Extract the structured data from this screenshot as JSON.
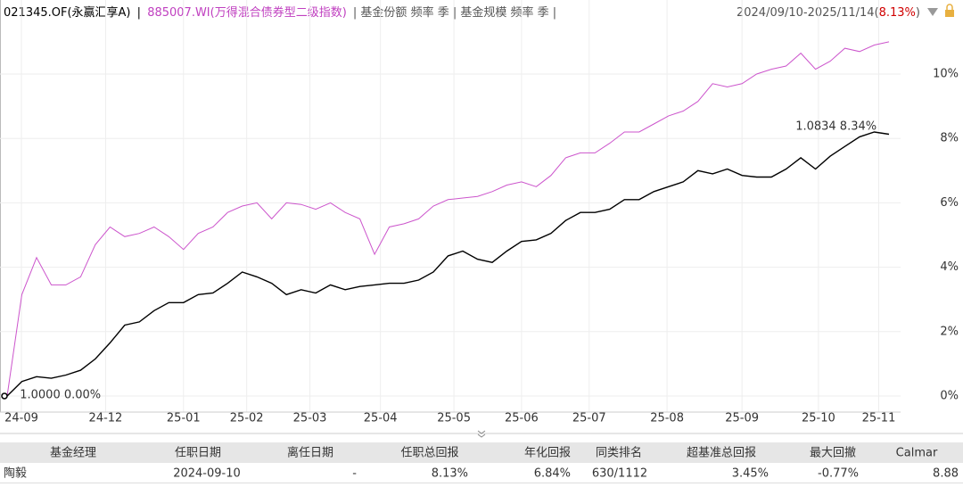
{
  "header": {
    "separator": "|",
    "options": "| 基金份额 频率 季 | 基金规模 频率 季 |",
    "range": "2024/09/10-2025/11/14(",
    "range_return": "8.13%",
    "range_close": ")"
  },
  "chart_data": {
    "type": "line",
    "xlim": [
      0,
      60
    ],
    "xticks": [
      {
        "value": 0.97,
        "label": "24-09"
      },
      {
        "value": 6.7,
        "label": "24-12"
      },
      {
        "value": 12.0,
        "label": "25-01"
      },
      {
        "value": 16.3,
        "label": "25-02"
      },
      {
        "value": 20.6,
        "label": "25-03"
      },
      {
        "value": 25.4,
        "label": "25-04"
      },
      {
        "value": 30.4,
        "label": "25-05"
      },
      {
        "value": 35.0,
        "label": "25-06"
      },
      {
        "value": 39.6,
        "label": "25-07"
      },
      {
        "value": 44.9,
        "label": "25-08"
      },
      {
        "value": 50.0,
        "label": "25-09"
      },
      {
        "value": 55.2,
        "label": "25-10"
      },
      {
        "value": 59.3,
        "label": "25-11"
      }
    ],
    "ylim": [
      -0.5,
      12.3
    ],
    "yticks": [
      {
        "value": 0,
        "label": "0%"
      },
      {
        "value": 2,
        "label": "2%"
      },
      {
        "value": 4,
        "label": "4%"
      },
      {
        "value": 6,
        "label": "6%"
      },
      {
        "value": 8,
        "label": "8%"
      },
      {
        "value": 10,
        "label": "10%"
      }
    ],
    "grid": true,
    "series": [
      {
        "name": "021345.OF(永赢汇享A)",
        "color": "#000000",
        "values": [
          0,
          0.45,
          0.6,
          0.55,
          0.65,
          0.8,
          1.15,
          1.65,
          2.2,
          2.3,
          2.65,
          2.9,
          2.9,
          3.15,
          3.2,
          3.5,
          3.85,
          3.7,
          3.5,
          3.15,
          3.3,
          3.2,
          3.45,
          3.3,
          3.4,
          3.45,
          3.5,
          3.5,
          3.6,
          3.85,
          4.35,
          4.5,
          4.25,
          4.15,
          4.5,
          4.8,
          4.85,
          5.05,
          5.45,
          5.7,
          5.7,
          5.8,
          6.1,
          6.1,
          6.35,
          6.5,
          6.65,
          7.0,
          6.9,
          7.05,
          6.85,
          6.8,
          6.8,
          7.05,
          7.4,
          7.05,
          7.45,
          7.75,
          8.05,
          8.2,
          8.13
        ]
      },
      {
        "name": "885007.WI(万得混合债券型二级指数)",
        "color": "#cc55cc",
        "values": [
          0,
          3.15,
          4.3,
          3.45,
          3.45,
          3.7,
          4.7,
          5.25,
          4.95,
          5.05,
          5.25,
          4.95,
          4.55,
          5.05,
          5.25,
          5.7,
          5.9,
          6.0,
          5.5,
          6.0,
          5.95,
          5.8,
          6.0,
          5.7,
          5.5,
          4.4,
          5.25,
          5.35,
          5.5,
          5.9,
          6.1,
          6.15,
          6.2,
          6.35,
          6.55,
          6.65,
          6.5,
          6.85,
          7.4,
          7.55,
          7.55,
          7.85,
          8.2,
          8.2,
          8.45,
          8.7,
          8.85,
          9.15,
          9.7,
          9.6,
          9.7,
          10.0,
          10.15,
          10.25,
          10.65,
          10.15,
          10.4,
          10.8,
          10.7,
          10.9,
          11.0
        ]
      }
    ],
    "annotations": [
      {
        "text": "1.0834 8.34%",
        "x": 59.4,
        "y": 8.34,
        "color": "#c00000"
      },
      {
        "text": "1.0000 0.00%",
        "x": 0.5,
        "y": 0,
        "color": "#1e9e1e"
      }
    ]
  },
  "table": {
    "header": [
      "基金经理",
      "任职日期",
      "离任日期",
      "任职总回报",
      "年化回报",
      "同类排名",
      "超基准总回报",
      "最大回撤",
      "Calmar"
    ],
    "rows": [
      [
        "陶毅",
        "2024-09-10",
        "-",
        "8.13%",
        "6.84%",
        "630/1112",
        "3.45%",
        "-0.77%",
        "8.88"
      ]
    ]
  }
}
